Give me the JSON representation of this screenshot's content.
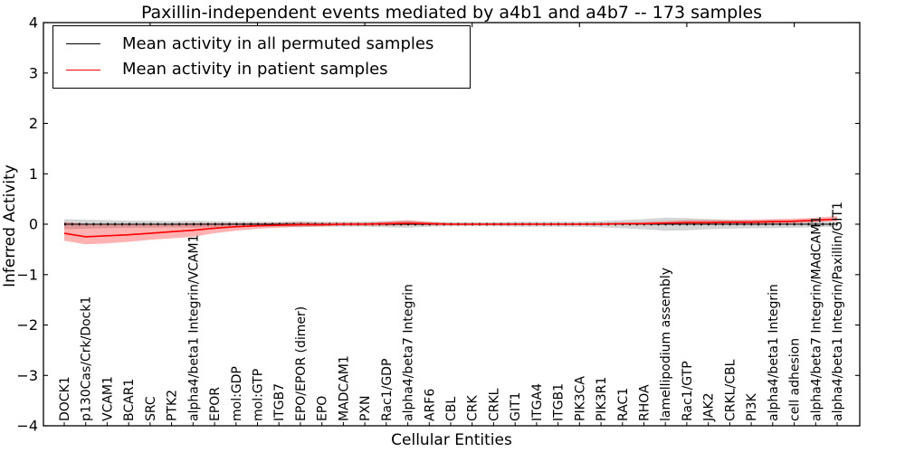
{
  "figure": {
    "title": "Paxillin-independent events mediated by a4b1 and a4b7 -- 173 samples",
    "xlabel": "Cellular Entities",
    "ylabel": "Inferred Activity"
  },
  "chart_data": {
    "type": "line",
    "title": "Paxillin-independent events mediated by a4b1 and a4b7 -- 173 samples",
    "xlabel": "Cellular Entities",
    "ylabel": "Inferred Activity",
    "ylim": [
      -4,
      4
    ],
    "y_ticks": [
      4,
      3,
      2,
      1,
      0,
      -1,
      -2,
      -3,
      -4
    ],
    "grid": false,
    "legend_position": "upper left",
    "categories": [
      "DOCK1",
      "p130Cas/Crk/Dock1",
      "VCAM1",
      "BCAR1",
      "SRC",
      "PTK2",
      "alpha4/beta1 Integrin/VCAM1",
      "EPOR",
      "mol:GDP",
      "mol:GTP",
      "ITGB7",
      "EPO/EPOR (dimer)",
      "EPO",
      "MADCAM1",
      "PXN",
      "Rac1/GDP",
      "alpha4/beta7 Integrin",
      "ARF6",
      "CBL",
      "CRK",
      "CRKL",
      "GIT1",
      "ITGA4",
      "ITGB1",
      "PIK3CA",
      "PIK3R1",
      "RAC1",
      "RHOA",
      "lamellipodium assembly",
      "Rac1/GTP",
      "JAK2",
      "CRKL/CBL",
      "PI3K",
      "alpha4/beta1 Integrin",
      "cell adhesion",
      "alpha4/beta7 Integrin/MAdCAM1",
      "alpha4/beta1 Integrin/Paxillin/GIT1"
    ],
    "series": [
      {
        "name": "Mean activity in all permuted samples",
        "color": "#000000",
        "band_color": "#999999",
        "values": [
          0,
          0,
          0,
          0,
          0,
          0,
          0,
          0,
          0,
          0,
          0,
          0,
          0,
          0,
          0,
          0,
          0,
          0,
          0,
          0,
          0,
          0,
          0,
          0,
          0,
          0,
          0,
          0,
          0,
          0,
          0,
          0,
          0,
          0,
          0,
          0,
          0
        ],
        "band_upper": [
          0.1,
          0.09,
          0.08,
          0.07,
          0.07,
          0.06,
          0.07,
          0.06,
          0.05,
          0.05,
          0.05,
          0.06,
          0.05,
          0.05,
          0.05,
          0.06,
          0.07,
          0.05,
          0.04,
          0.04,
          0.04,
          0.05,
          0.05,
          0.05,
          0.05,
          0.06,
          0.08,
          0.1,
          0.13,
          0.12,
          0.1,
          0.09,
          0.08,
          0.08,
          0.07,
          0.06,
          0.05
        ],
        "band_lower": [
          -0.1,
          -0.09,
          -0.08,
          -0.07,
          -0.07,
          -0.06,
          -0.07,
          -0.06,
          -0.05,
          -0.05,
          -0.05,
          -0.06,
          -0.05,
          -0.05,
          -0.05,
          -0.06,
          -0.07,
          -0.05,
          -0.04,
          -0.04,
          -0.04,
          -0.05,
          -0.05,
          -0.05,
          -0.05,
          -0.06,
          -0.08,
          -0.1,
          -0.13,
          -0.12,
          -0.1,
          -0.09,
          -0.08,
          -0.08,
          -0.07,
          -0.06,
          -0.05
        ]
      },
      {
        "name": "Mean activity in patient samples",
        "color": "#ff0000",
        "band_color": "#ff0000",
        "values": [
          -0.18,
          -0.25,
          -0.23,
          -0.21,
          -0.18,
          -0.15,
          -0.12,
          -0.08,
          -0.05,
          -0.03,
          -0.02,
          -0.01,
          -0.01,
          0,
          0,
          0.01,
          0.02,
          0.01,
          0,
          0,
          0,
          0,
          0,
          0,
          0,
          0,
          0.01,
          0.01,
          0.02,
          0.03,
          0.03,
          0.04,
          0.04,
          0.05,
          0.06,
          0.08,
          0.1
        ],
        "band_upper": [
          0.04,
          0.01,
          0,
          0,
          0.01,
          0.01,
          0.02,
          0.02,
          0.02,
          0.02,
          0.03,
          0.04,
          0.03,
          0.03,
          0.03,
          0.05,
          0.08,
          0.04,
          0.02,
          0.02,
          0.02,
          0.02,
          0.02,
          0.02,
          0.02,
          0.03,
          0.03,
          0.04,
          0.06,
          0.08,
          0.08,
          0.08,
          0.09,
          0.1,
          0.11,
          0.13,
          0.16
        ],
        "band_lower": [
          -0.33,
          -0.4,
          -0.38,
          -0.35,
          -0.31,
          -0.28,
          -0.25,
          -0.18,
          -0.13,
          -0.09,
          -0.07,
          -0.05,
          -0.04,
          -0.03,
          -0.03,
          -0.03,
          -0.02,
          -0.02,
          -0.02,
          -0.02,
          -0.02,
          -0.02,
          -0.02,
          -0.02,
          -0.02,
          -0.02,
          -0.01,
          -0.01,
          -0.01,
          0,
          0,
          0,
          0.01,
          0.01,
          0.02,
          0.04,
          0.06
        ]
      }
    ]
  }
}
